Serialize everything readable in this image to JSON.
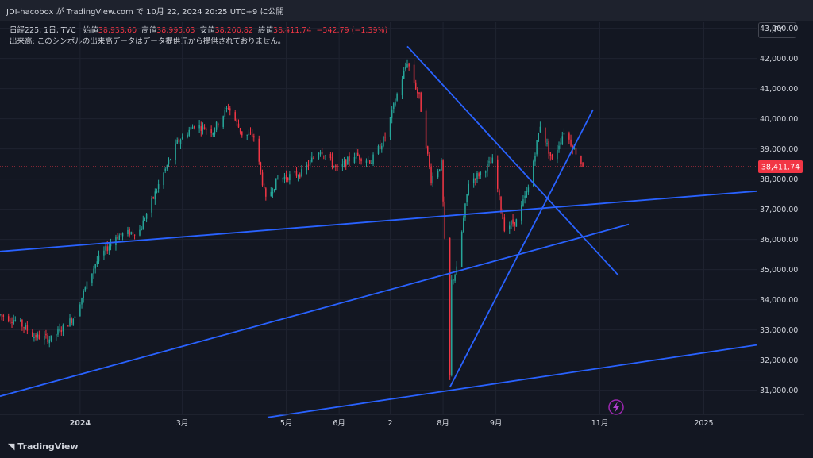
{
  "header": {
    "title": "JDI-hacobox が TradingView.com で 10月 22, 2024 20:25 UTC+9 に公開"
  },
  "legend": {
    "symbol": "日経225, 1日, TVC",
    "open_label": "始値",
    "open": "38,933.60",
    "high_label": "高値",
    "high": "38,995.03",
    "low_label": "安値",
    "low": "38,200.82",
    "close_label": "終値",
    "close": "38,411.74",
    "change": "−542.79 (−1.39%)",
    "volume_note": "出来高: このシンボルの出来高データはデータ提供元から提供されておりません。"
  },
  "currency_button": "JPY",
  "footer": {
    "brand": "TradingView"
  },
  "colors": {
    "up": "#26a69a",
    "down": "#f23645",
    "trendline": "#2962ff",
    "background": "#131722"
  },
  "chart_data": {
    "type": "candlestick",
    "title": "",
    "xlabel": "",
    "ylabel": "",
    "ylim": [
      30200,
      43200
    ],
    "current_price": 38411.74,
    "current_price_label": "38,411.74",
    "y_ticks": [
      {
        "value": 31000,
        "label": "31,000.00"
      },
      {
        "value": 32000,
        "label": "32,000.00"
      },
      {
        "value": 33000,
        "label": "33,000.00"
      },
      {
        "value": 34000,
        "label": "34,000.00"
      },
      {
        "value": 35000,
        "label": "35,000.00"
      },
      {
        "value": 36000,
        "label": "36,000.00"
      },
      {
        "value": 37000,
        "label": "37,000.00"
      },
      {
        "value": 38000,
        "label": "38,000.00"
      },
      {
        "value": 39000,
        "label": "39,000.00"
      },
      {
        "value": 40000,
        "label": "40,000.00"
      },
      {
        "value": 41000,
        "label": "41,000.00"
      },
      {
        "value": 42000,
        "label": "42,000.00"
      },
      {
        "value": 43000,
        "label": "43,000.00"
      }
    ],
    "x_ticks": [
      {
        "date": "2024-01-01",
        "label": "2024",
        "bold": true
      },
      {
        "date": "2024-03-01",
        "label": "3月"
      },
      {
        "date": "2024-05-01",
        "label": "5月"
      },
      {
        "date": "2024-06-01",
        "label": "6月"
      },
      {
        "date": "2024-07-01",
        "label": "2"
      },
      {
        "date": "2024-08-01",
        "label": "8月"
      },
      {
        "date": "2024-09-01",
        "label": "9月"
      },
      {
        "date": "2024-11-01",
        "label": "11月"
      },
      {
        "date": "2025-01-01",
        "label": "2025"
      }
    ],
    "x_range": [
      "2023-11-15",
      "2025-02-01"
    ],
    "price_path": [
      [
        "2023-11-15",
        33500
      ],
      [
        "2023-11-25",
        33300
      ],
      [
        "2023-12-05",
        32800
      ],
      [
        "2023-12-15",
        32700
      ],
      [
        "2023-12-28",
        33400
      ],
      [
        "2024-01-10",
        35200
      ],
      [
        "2024-01-22",
        36100
      ],
      [
        "2024-02-05",
        36300
      ],
      [
        "2024-02-16",
        37800
      ],
      [
        "2024-02-27",
        39200
      ],
      [
        "2024-03-08",
        39800
      ],
      [
        "2024-03-19",
        39600
      ],
      [
        "2024-03-28",
        40400
      ],
      [
        "2024-04-05",
        39500
      ],
      [
        "2024-04-12",
        39400
      ],
      [
        "2024-04-19",
        37300
      ],
      [
        "2024-04-26",
        38000
      ],
      [
        "2024-05-10",
        38200
      ],
      [
        "2024-05-21",
        39000
      ],
      [
        "2024-05-31",
        38300
      ],
      [
        "2024-06-10",
        38800
      ],
      [
        "2024-06-20",
        38600
      ],
      [
        "2024-06-28",
        39400
      ],
      [
        "2024-07-05",
        40800
      ],
      [
        "2024-07-11",
        41900
      ],
      [
        "2024-07-18",
        40700
      ],
      [
        "2024-07-25",
        38000
      ],
      [
        "2024-07-31",
        38500
      ],
      [
        "2024-08-02",
        35900
      ],
      [
        "2024-08-05",
        31450
      ],
      [
        "2024-08-06",
        34600
      ],
      [
        "2024-08-09",
        35000
      ],
      [
        "2024-08-16",
        37900
      ],
      [
        "2024-08-23",
        38200
      ],
      [
        "2024-08-30",
        38600
      ],
      [
        "2024-09-06",
        36400
      ],
      [
        "2024-09-13",
        36600
      ],
      [
        "2024-09-20",
        37700
      ],
      [
        "2024-09-27",
        39800
      ],
      [
        "2024-10-04",
        38600
      ],
      [
        "2024-10-11",
        39600
      ],
      [
        "2024-10-18",
        38900
      ],
      [
        "2024-10-22",
        38411.74
      ]
    ],
    "trendlines": [
      {
        "from": [
          "2023-11-15",
          35600
        ],
        "to": [
          "2025-02-01",
          37600
        ]
      },
      {
        "from": [
          "2023-11-15",
          30800
        ],
        "to": [
          "2024-11-18",
          36500
        ]
      },
      {
        "from": [
          "2024-04-20",
          30100
        ],
        "to": [
          "2025-02-01",
          32500
        ]
      },
      {
        "from": [
          "2024-07-11",
          42400
        ],
        "to": [
          "2024-11-12",
          34800
        ]
      },
      {
        "from": [
          "2024-08-05",
          31100
        ],
        "to": [
          "2024-10-28",
          40300
        ]
      }
    ]
  }
}
